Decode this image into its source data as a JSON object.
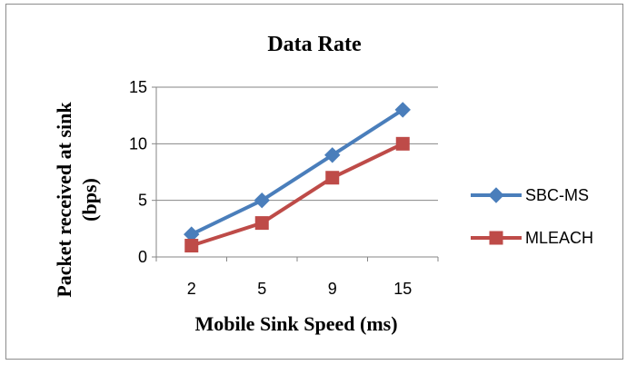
{
  "chart_data": {
    "type": "line",
    "title": "Data Rate",
    "xlabel": "Mobile Sink Speed (ms)",
    "ylabel_line1": "Packet  received at sink",
    "ylabel_line2": "(bps)",
    "categories": [
      "2",
      "5",
      "9",
      "15"
    ],
    "ylim": [
      0,
      15
    ],
    "yticks": [
      "0",
      "5",
      "10",
      "15"
    ],
    "grid": "horizontal",
    "legend_position": "right",
    "series": [
      {
        "name": "SBC-MS",
        "values": [
          2,
          5,
          9,
          13
        ],
        "color": "#4a7ebb",
        "marker": "diamond"
      },
      {
        "name": "MLEACH",
        "values": [
          1,
          3,
          7,
          10
        ],
        "color": "#be4b48",
        "marker": "square"
      }
    ]
  }
}
